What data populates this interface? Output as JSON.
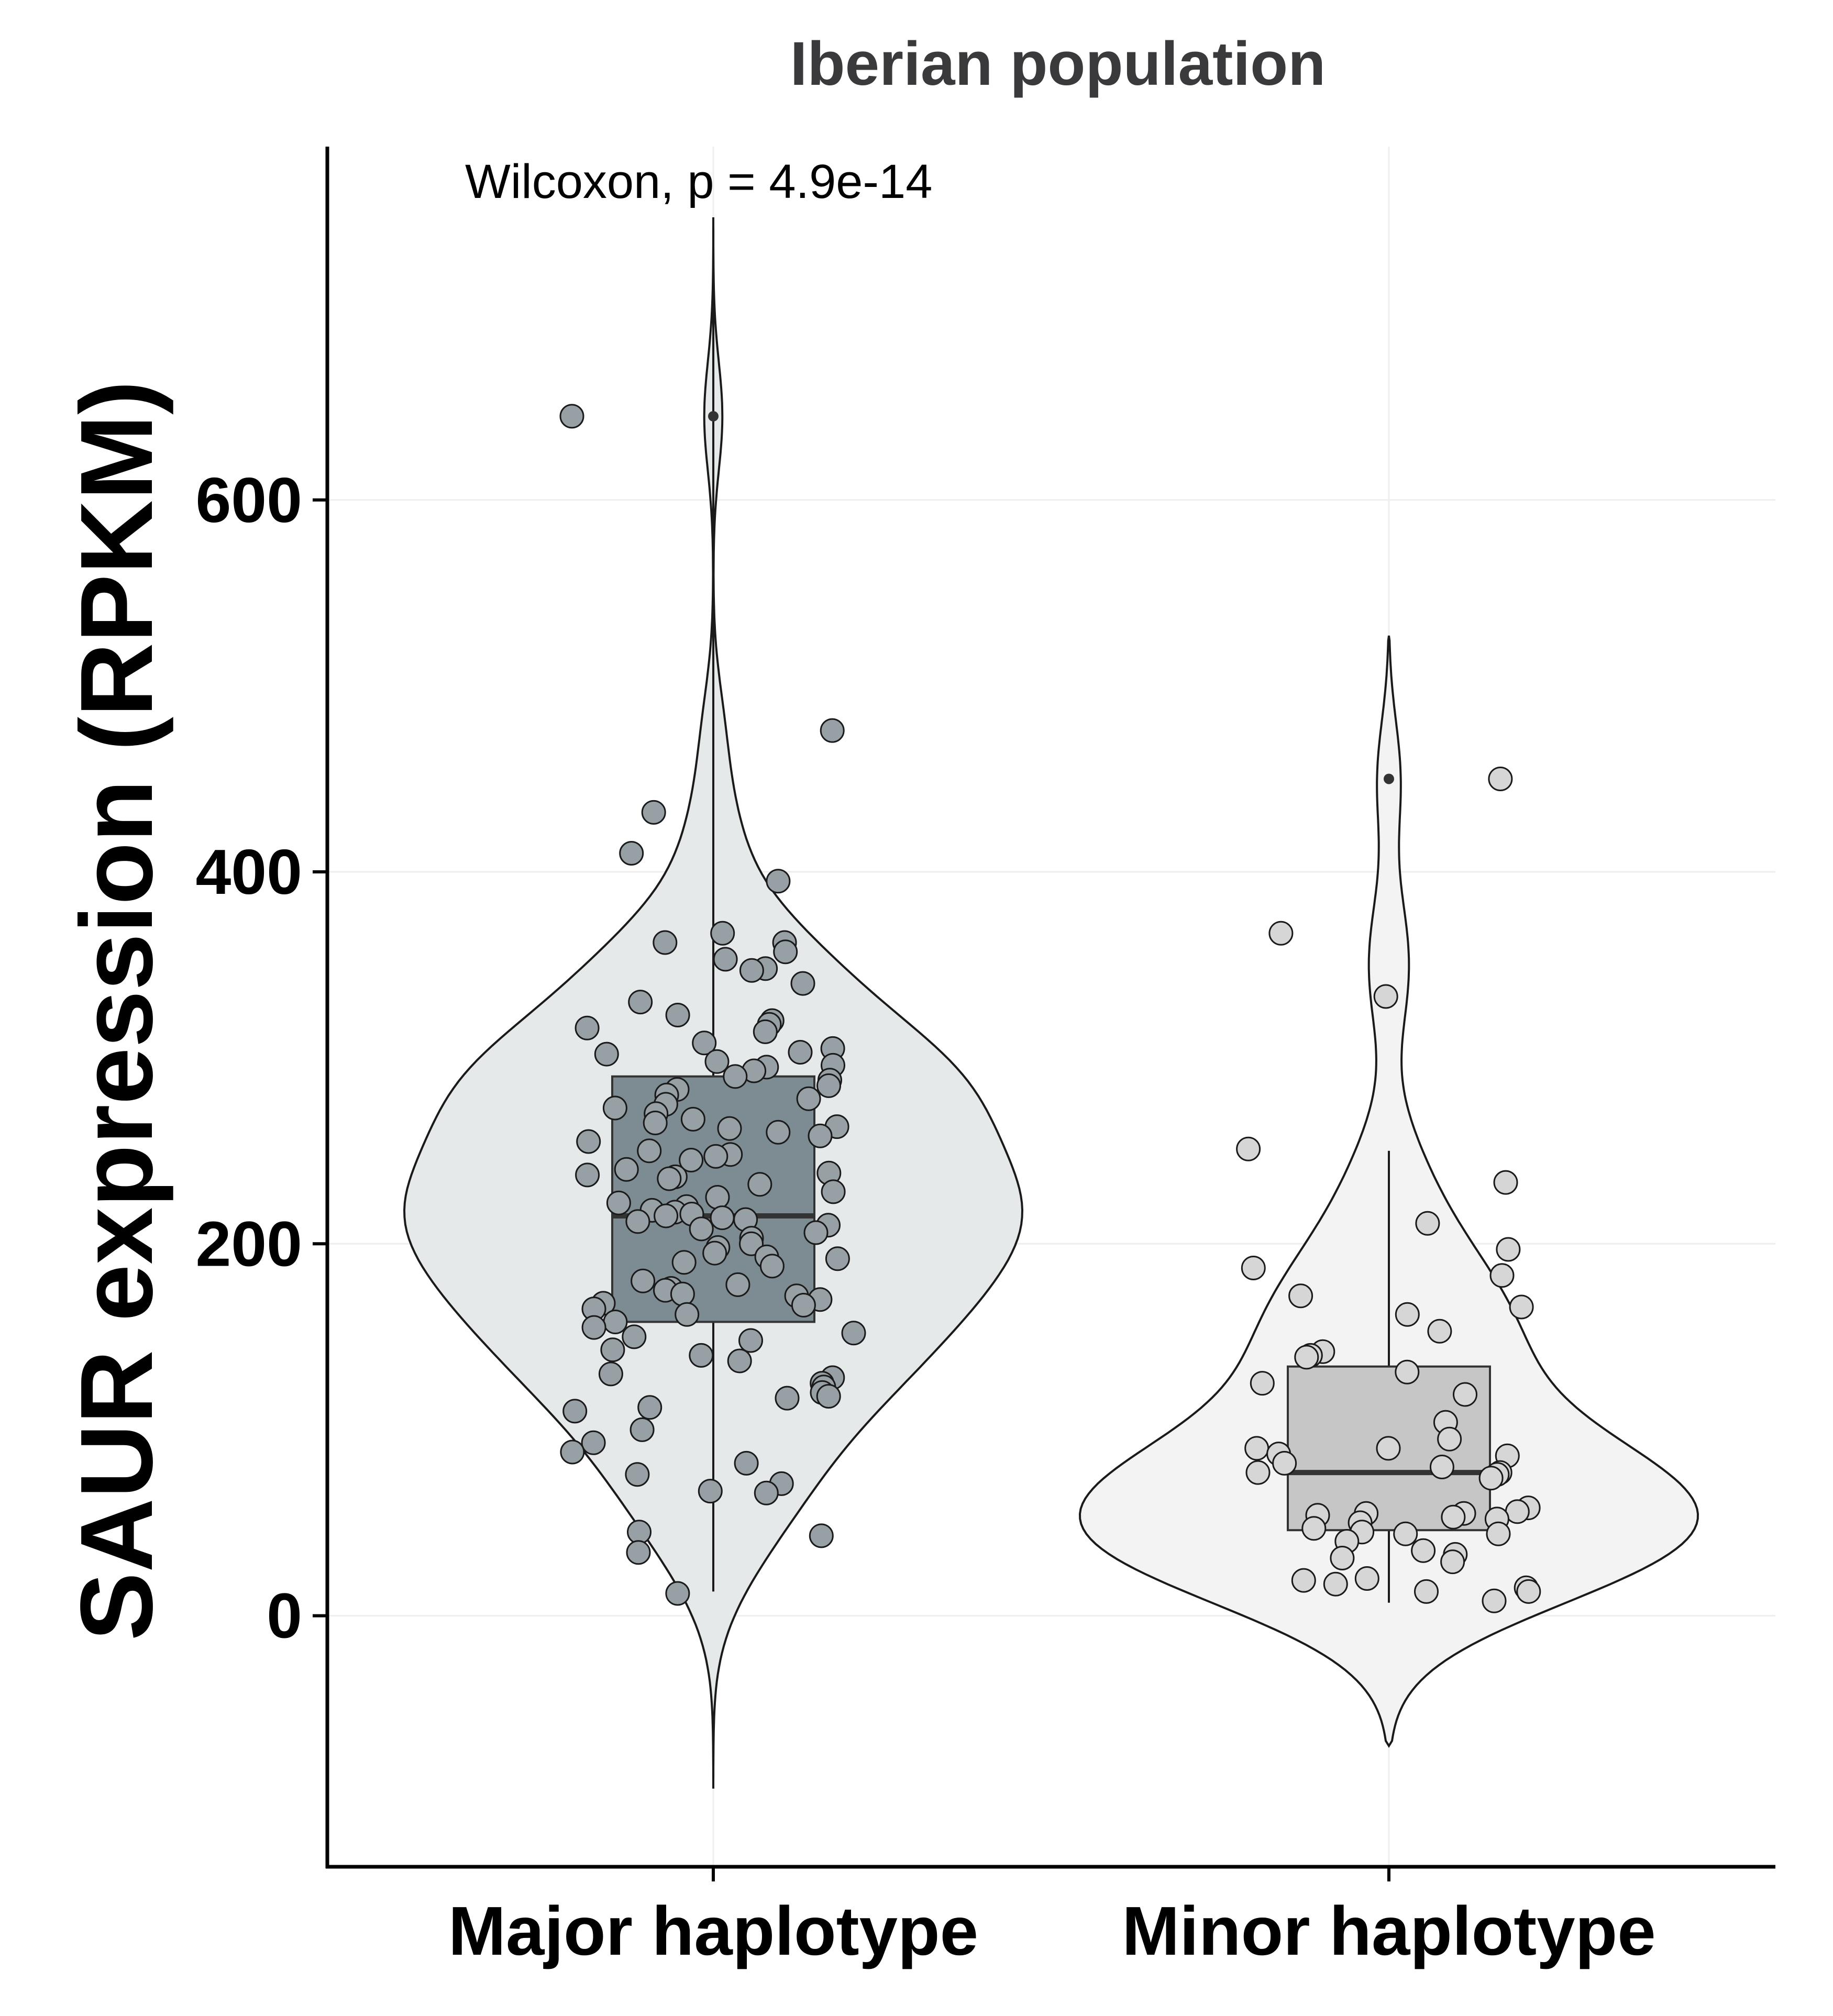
{
  "chart_data": {
    "type": "violin",
    "title": "Iberian population",
    "ylabel": "SAUR expression (RPKM)",
    "xlabel": "",
    "categories": [
      "Major haplotype",
      "Minor haplotype"
    ],
    "ylim": [
      -135,
      790
    ],
    "yticks": [
      0,
      200,
      400,
      600
    ],
    "grid": true,
    "legend": "none",
    "annotation": "Wilcoxon, p = 4.9e-14",
    "colors": {
      "Major haplotype": {
        "violin": "#e6e9ea",
        "box": "#7d8b92",
        "points": "#97a0a5"
      },
      "Minor haplotype": {
        "violin": "#f3f3f3",
        "box": "#c6c6c6",
        "points": "#d6d6d6"
      },
      "outline": "#1a1a1a",
      "grid": "#eeeeee",
      "median": "#333333"
    },
    "series": [
      {
        "name": "Major haplotype",
        "box": {
          "q1": 158,
          "median": 215,
          "q3": 290,
          "whisker_low": 13,
          "whisker_high": 752
        },
        "violin_range": [
          -93,
          752
        ],
        "outliers": [
          645
        ],
        "points": [
          645,
          476,
          432,
          410,
          395,
          367,
          362,
          362,
          357,
          353,
          348,
          347,
          340,
          330,
          323,
          320,
          318,
          316,
          314,
          308,
          305,
          303,
          302,
          298,
          296,
          295,
          293,
          290,
          288,
          285,
          283,
          280,
          278,
          275,
          273,
          270,
          267,
          265,
          263,
          262,
          260,
          258,
          255,
          250,
          248,
          247,
          245,
          240,
          238,
          237,
          236,
          235,
          232,
          228,
          225,
          222,
          220,
          218,
          217,
          216,
          215,
          214,
          213,
          212,
          210,
          208,
          206,
          203,
          200,
          198,
          195,
          193,
          192,
          190,
          188,
          180,
          178,
          176,
          175,
          173,
          172,
          170,
          168,
          167,
          165,
          162,
          158,
          155,
          152,
          150,
          148,
          143,
          140,
          137,
          130,
          128,
          125,
          123,
          120,
          118,
          117,
          112,
          110,
          100,
          93,
          88,
          82,
          76,
          71,
          67,
          66,
          45,
          43,
          34,
          12
        ]
      },
      {
        "name": "Minor haplotype",
        "box": {
          "q1": 46,
          "median": 77,
          "q3": 134,
          "whisker_low": 7,
          "whisker_high": 250
        },
        "violin_range": [
          -70,
          527
        ],
        "outliers": [
          450,
          333
        ],
        "points": [
          450,
          367,
          333,
          251,
          233,
          211,
          197,
          187,
          183,
          172,
          166,
          162,
          153,
          142,
          140,
          139,
          131,
          125,
          119,
          104,
          95,
          90,
          90,
          87,
          86,
          82,
          80,
          77,
          77,
          76,
          74,
          58,
          56,
          55,
          55,
          54,
          53,
          52,
          50,
          47,
          45,
          44,
          44,
          40,
          35,
          33,
          31,
          29,
          20,
          19,
          17,
          15,
          13,
          13,
          8
        ]
      }
    ]
  }
}
